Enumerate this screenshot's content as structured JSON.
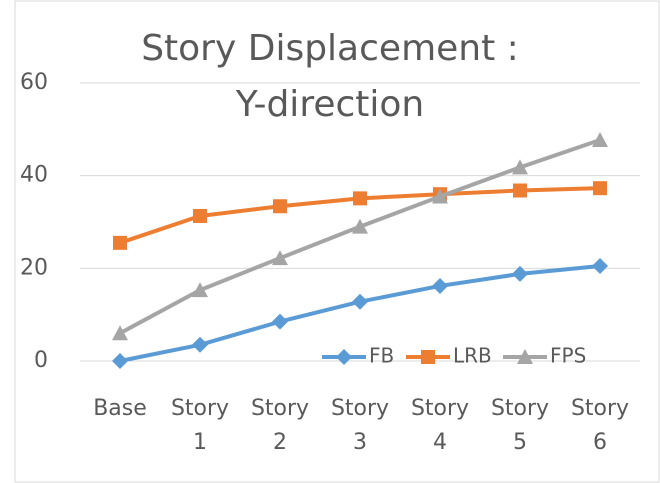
{
  "chart_data": {
    "type": "line",
    "title": "Story Displacement : Y-direction",
    "categories": [
      "Base",
      "Story 1",
      "Story 2",
      "Story 3",
      "Story 4",
      "Story 5",
      "Story 6"
    ],
    "series": [
      {
        "name": "FB",
        "color": "#5b9bd5",
        "marker": "diamond",
        "values": [
          0,
          3.5,
          8.5,
          12.8,
          16.2,
          18.8,
          20.5
        ]
      },
      {
        "name": "LRB",
        "color": "#ed7d31",
        "marker": "square",
        "values": [
          25.5,
          31.3,
          33.4,
          35.1,
          36,
          36.8,
          37.3
        ]
      },
      {
        "name": "FPS",
        "color": "#a5a5a5",
        "marker": "triangle",
        "values": [
          6,
          15.3,
          22.2,
          29,
          35.5,
          41.8,
          47.7
        ]
      }
    ],
    "ylim": [
      0,
      60
    ],
    "yticks": [
      0,
      20,
      40,
      60
    ],
    "grid": true,
    "legend": "lower right"
  }
}
